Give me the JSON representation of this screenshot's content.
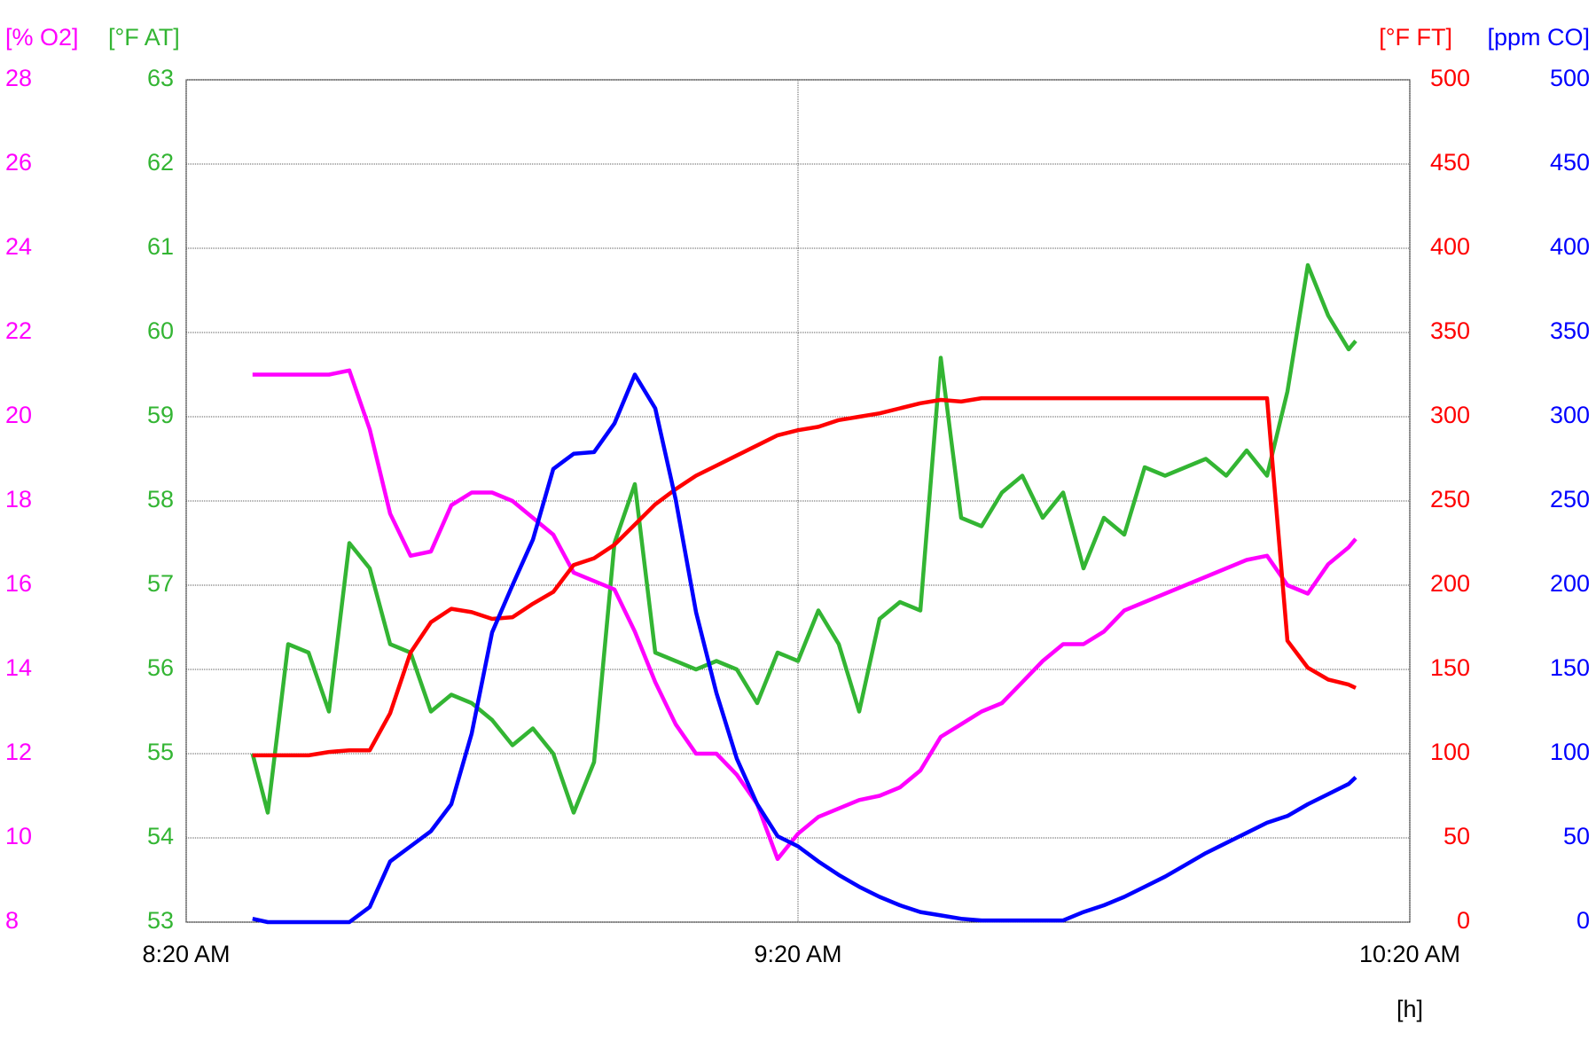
{
  "chart_data": {
    "type": "line",
    "xlabel": "[h]",
    "xlim": [
      0,
      120
    ],
    "xticks": [
      {
        "value": 0,
        "label": "8:20 AM"
      },
      {
        "value": 60,
        "label": "9:20 AM"
      },
      {
        "value": 120,
        "label": "10:20 AM"
      }
    ],
    "ylabel": "[% O2]",
    "ylim": [
      8,
      28
    ],
    "yticks": [
      8,
      10,
      12,
      14,
      16,
      18,
      20,
      22,
      24,
      26,
      28
    ],
    "ycolor": "#ff00ff",
    "y2label": "[°F AT]",
    "y2lim": [
      53,
      63
    ],
    "y2ticks": [
      53,
      54,
      55,
      56,
      57,
      58,
      59,
      60,
      61,
      62,
      63
    ],
    "y2color": "#33b533",
    "y3label": "[°F FT]",
    "y3lim": [
      0,
      500
    ],
    "y3ticks": [
      0,
      50,
      100,
      150,
      200,
      250,
      300,
      350,
      400,
      450,
      500
    ],
    "y3color": "#ff0000",
    "y4label": "[ppm CO]",
    "y4lim": [
      0,
      500
    ],
    "y4ticks": [
      0,
      50,
      100,
      150,
      200,
      250,
      300,
      350,
      400,
      450,
      500
    ],
    "y4color": "#0000ff",
    "grid": true,
    "x": [
      6.5,
      8,
      10,
      12,
      14,
      16,
      18,
      20,
      22,
      24,
      26,
      28,
      30,
      32,
      34,
      36,
      38,
      40,
      42,
      44,
      46,
      48,
      50,
      52,
      54,
      56,
      58,
      60,
      62,
      64,
      66,
      68,
      70,
      72,
      74,
      76,
      78,
      80,
      82,
      84,
      86,
      88,
      90,
      92,
      94,
      96,
      98,
      100,
      102,
      104,
      106,
      108,
      110,
      112,
      114,
      114.7
    ],
    "series": [
      {
        "axis": "y2",
        "color": "#33b533",
        "values": [
          55.0,
          54.3,
          56.3,
          56.2,
          55.5,
          57.5,
          57.2,
          56.3,
          56.2,
          55.5,
          55.7,
          55.6,
          55.4,
          55.1,
          55.3,
          55.0,
          54.3,
          54.9,
          57.5,
          58.2,
          56.2,
          56.1,
          56.0,
          56.1,
          56.0,
          55.6,
          56.2,
          56.1,
          56.7,
          56.3,
          55.5,
          56.6,
          56.8,
          56.7,
          59.7,
          57.8,
          57.7,
          58.1,
          58.3,
          57.8,
          58.1,
          57.2,
          57.8,
          57.6,
          58.4,
          58.3,
          58.4,
          58.5,
          58.3,
          58.6,
          58.3,
          59.3,
          60.8,
          60.2,
          59.8,
          59.9
        ]
      },
      {
        "axis": "y",
        "color": "#ff00ff",
        "values": [
          21.0,
          21.0,
          21.0,
          21.0,
          21.0,
          21.1,
          19.7,
          17.7,
          16.7,
          16.8,
          17.9,
          18.2,
          18.2,
          18.0,
          17.6,
          17.2,
          16.3,
          16.1,
          15.9,
          14.9,
          13.7,
          12.7,
          12.0,
          12.0,
          11.5,
          10.8,
          9.5,
          10.1,
          10.5,
          10.7,
          10.9,
          11.0,
          11.2,
          11.6,
          12.4,
          12.7,
          13.0,
          13.2,
          13.7,
          14.2,
          14.6,
          14.6,
          14.9,
          15.4,
          15.6,
          15.8,
          16.0,
          16.2,
          16.4,
          16.6,
          16.7,
          16.0,
          15.8,
          16.5,
          16.9,
          17.1
        ]
      },
      {
        "axis": "y3",
        "color": "#ff0000",
        "values": [
          99,
          99,
          99,
          99,
          101,
          102,
          102,
          124,
          160,
          178,
          186,
          184,
          180,
          181,
          189,
          196,
          212,
          216,
          224,
          236,
          248,
          257,
          265,
          271,
          277,
          283,
          289,
          292,
          294,
          298,
          300,
          302,
          305,
          308,
          310,
          309,
          311,
          311,
          311,
          311,
          311,
          311,
          311,
          311,
          311,
          311,
          311,
          311,
          311,
          311,
          311,
          167,
          151,
          144,
          141,
          139
        ]
      },
      {
        "axis": "y4",
        "color": "#0000ff",
        "values": [
          2,
          0,
          0,
          0,
          0,
          0,
          9,
          36,
          45,
          54,
          70,
          112,
          172,
          200,
          227,
          269,
          278,
          279,
          296,
          325,
          305,
          251,
          184,
          136,
          97,
          70,
          51,
          45,
          36,
          28,
          21,
          15,
          10,
          6,
          4,
          2,
          1,
          1,
          1,
          1,
          1,
          6,
          10,
          15,
          21,
          27,
          34,
          41,
          47,
          53,
          59,
          63,
          70,
          76,
          82,
          86
        ]
      }
    ]
  }
}
